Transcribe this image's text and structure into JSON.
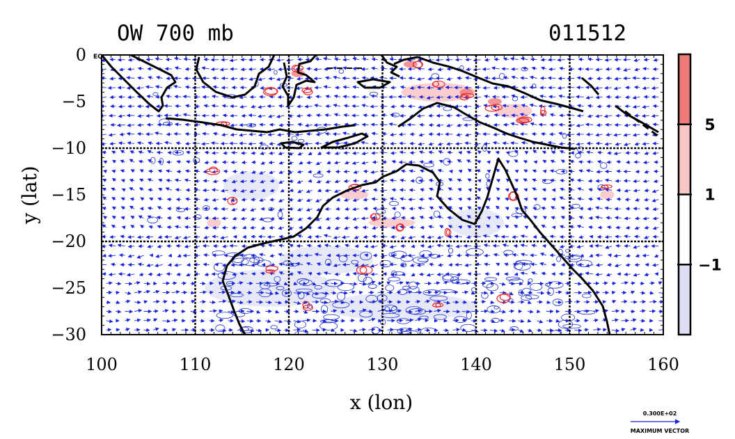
{
  "header": {
    "title_left": "OW 700 mb",
    "title_right": "011512"
  },
  "chart_data": {
    "type": "map",
    "variable": "OW",
    "level": "700 mb",
    "time_label": "011512",
    "xlabel": "x (lon)",
    "ylabel": "y (lat)",
    "xlim": [
      100,
      160
    ],
    "ylim": [
      -30,
      0
    ],
    "x_ticks": [
      "100",
      "110",
      "120",
      "130",
      "140",
      "150",
      "160"
    ],
    "y_ticks": [
      "0",
      "−5",
      "−10",
      "−15",
      "−20",
      "−25",
      "−30"
    ],
    "equator_label": "EQ",
    "grid_lines": {
      "lon": [
        110,
        120,
        130,
        140,
        150
      ],
      "lat": [
        -10,
        -20
      ]
    },
    "colorbar": {
      "levels": [
        -1,
        1,
        5
      ],
      "labels": [
        "−1",
        "1",
        "5"
      ],
      "colors": [
        "#dde0f4",
        "#ffffff",
        "#f9c6c6",
        "#f07a7a"
      ]
    },
    "contour_colors": {
      "positive": "#e8262a",
      "negative": "#1a2ccc"
    },
    "vector_color": "#1622dd",
    "max_vector": {
      "value_label": "0.300E+02",
      "caption": "MAXIMUM VECTOR"
    }
  }
}
